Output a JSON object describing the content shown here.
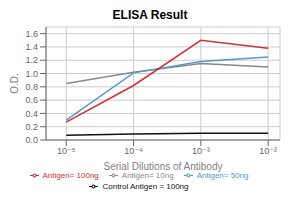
{
  "chart_data": {
    "type": "line",
    "title": "ELISA Result",
    "xlabel": "Serial Dilutions of Antibody",
    "ylabel": "O.D.",
    "x": [
      0.01,
      0.001,
      0.0001,
      1e-05
    ],
    "series": [
      {
        "name": "Control Antigen = 100ng",
        "color": "#111111",
        "values": [
          0.1,
          0.1,
          0.09,
          0.07
        ]
      },
      {
        "name": "Antigen= 10ng",
        "color": "#888888",
        "values": [
          1.1,
          1.15,
          1.02,
          0.85
        ]
      },
      {
        "name": "Antigen= 50ng",
        "color": "#5599cc",
        "values": [
          1.25,
          1.18,
          1.01,
          0.3
        ]
      },
      {
        "name": "Antigen= 100ng",
        "color": "#cc3333",
        "values": [
          1.38,
          1.5,
          0.82,
          0.27
        ]
      }
    ],
    "log": "x",
    "xlim": [
      5e-06,
      0.015
    ],
    "xticks": [
      {
        "value": 0.01,
        "label": "10⁻²"
      },
      {
        "value": 0.001,
        "label": "10⁻³"
      },
      {
        "value": 0.0001,
        "label": "10⁻⁴"
      },
      {
        "value": 1e-05,
        "label": "10⁻⁵"
      }
    ],
    "ylim": [
      0,
      1.7
    ],
    "yticks": [
      {
        "value": 0,
        "label": "0.0"
      },
      0.2,
      0.4,
      0.6,
      0.8,
      {
        "value": 1.0,
        "label": "1.0"
      },
      1.2,
      1.4,
      1.6
    ],
    "grid": true,
    "legend": "bottom"
  }
}
